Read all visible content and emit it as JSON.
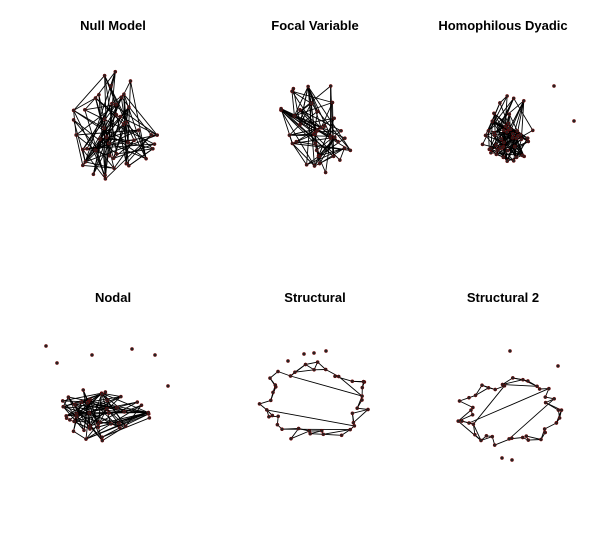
{
  "figure": {
    "panels": [
      {
        "id": "null-model",
        "title": "Null Model"
      },
      {
        "id": "focal-variable",
        "title": "Focal Variable"
      },
      {
        "id": "homophilous-dyadic",
        "title": "Homophilous Dyadic"
      },
      {
        "id": "nodal",
        "title": "Nodal"
      },
      {
        "id": "structural",
        "title": "Structural"
      },
      {
        "id": "structural-2",
        "title": "Structural 2"
      }
    ],
    "colors": {
      "edge": "#000000",
      "node_fill": "#222222",
      "node_outline": "#7a0000",
      "background": "#ffffff"
    }
  }
}
